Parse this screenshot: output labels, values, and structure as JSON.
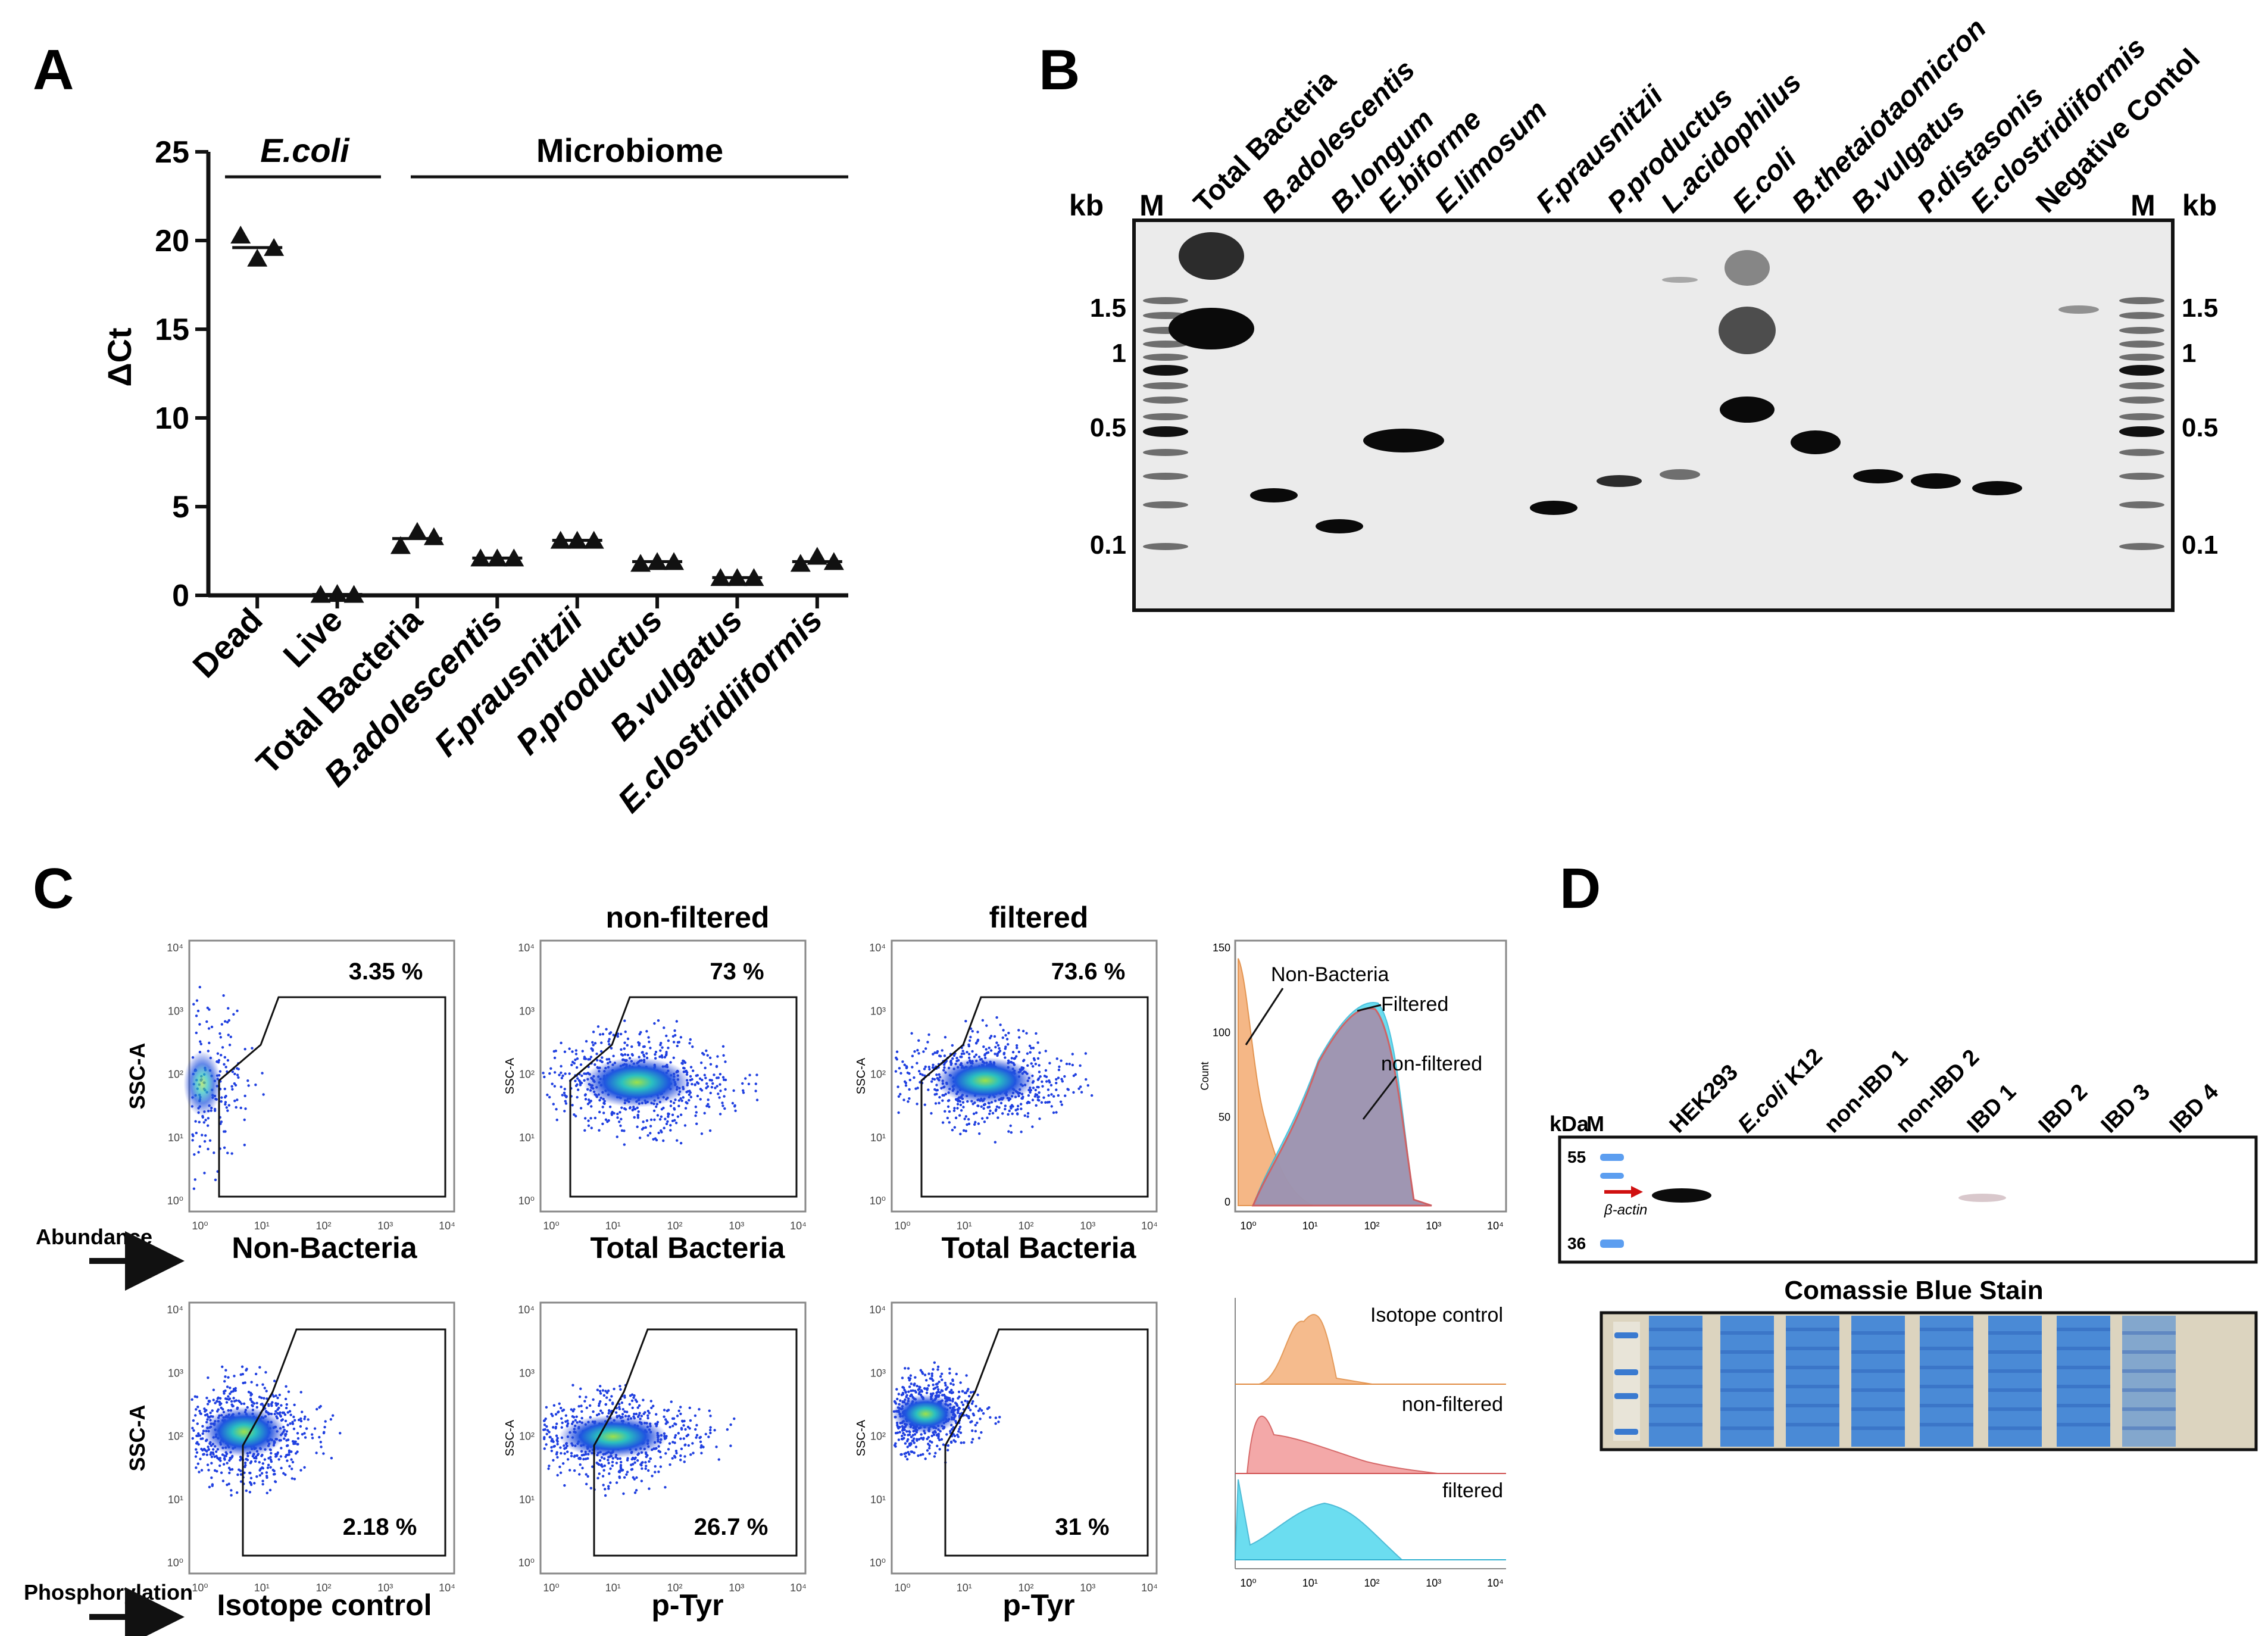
{
  "panel_letters": [
    "A",
    "B",
    "C",
    "D"
  ],
  "colors": {
    "axis": "#111111",
    "gel_bg": "#ececec",
    "gel_band": "#0a0a0a",
    "flow_low": "#1f3bd6",
    "flow_mid": "#1fb0c9",
    "flow_high": "#7bd14b",
    "hist_orange": "#f4b07a",
    "hist_red": "#f08a8a",
    "hist_cyan": "#52d8ee",
    "hist_purple": "#a98aa8",
    "coomassie": "#3a82d8",
    "coomassie_bg": "#d9d3c0",
    "arrow_red": "#d01010"
  },
  "panelA": {
    "ylabel": "ΔCt",
    "group1": "E.coli",
    "group2": "Microbiome",
    "chart_data": {
      "type": "scatter",
      "yticks": [
        "0",
        "5",
        "10",
        "15",
        "20",
        "25"
      ],
      "ylim": [
        0,
        25
      ],
      "categories": [
        "Dead",
        "Live",
        "Total Bacteria",
        "B.adolescentis",
        "F.prausnitzii",
        "P.productus",
        "B.vulgatus",
        "E.clostridiiformis"
      ],
      "points": [
        [
          20.3,
          19.0,
          19.6
        ],
        [
          0.05,
          0.1,
          0.05
        ],
        [
          2.8,
          3.6,
          3.3
        ],
        [
          2.1,
          2.1,
          2.1
        ],
        [
          3.1,
          3.1,
          3.1
        ],
        [
          1.8,
          1.9,
          1.9
        ],
        [
          1.0,
          1.0,
          1.0
        ],
        [
          1.8,
          2.2,
          1.9
        ]
      ],
      "means": [
        19.6,
        0.05,
        3.2,
        2.1,
        3.1,
        1.9,
        1.0,
        1.9
      ]
    }
  },
  "panelB": {
    "kb": "kb",
    "marker": "M",
    "ladder_labels": [
      "1.5",
      "1",
      "0.5",
      "0.1"
    ],
    "lanes": [
      "Total Bacteria",
      "B.adolescentis",
      "B.longum",
      "E.biforme",
      "E.limosum",
      "F.prausnitzii",
      "P.productus",
      "L.acidophilus",
      "E.coli",
      "B.thetaiotaomicron",
      "B.vulgatus",
      "P.distasonis",
      "E.clostridiiformis",
      "Negative Contol"
    ]
  },
  "panelC": {
    "col_titles": [
      "non-filtered",
      "filtered"
    ],
    "ssc_label": "SSC-A",
    "ssc_small": "SSC-A",
    "count_label": "Count",
    "tick_labels": [
      "10⁰",
      "10¹",
      "10²",
      "10³",
      "10⁴"
    ],
    "top_percents": [
      "3.35 %",
      "73 %",
      "73.6 %"
    ],
    "bottom_percents": [
      "2.18 %",
      "26.7 %",
      "31 %"
    ],
    "top_names": [
      "Non-Bacteria",
      "Total Bacteria",
      "Total Bacteria"
    ],
    "bottom_names": [
      "Isotope control",
      "p-Tyr",
      "p-Tyr"
    ],
    "abundance": "Abundance",
    "phosphorylation": "Phosphorylation",
    "hist_labels_top": [
      "Non-Bacteria",
      "Filtered",
      "non-filtered"
    ],
    "hist_labels_bottom": [
      "Isotope control",
      "non-filtered",
      "filtered"
    ],
    "hist_yticks": [
      "150",
      "100",
      "50",
      "0"
    ]
  },
  "panelD": {
    "kda": "kDa",
    "marker": "M",
    "mw": [
      "55",
      "36"
    ],
    "lanes": [
      "HEK293",
      "E.coli K12",
      "non-IBD 1",
      "non-IBD 2",
      "IBD 1",
      "IBD 2",
      "IBD 3",
      "IBD 4"
    ],
    "actin": "β-actin",
    "stain_title": "Comassie Blue Stain"
  }
}
